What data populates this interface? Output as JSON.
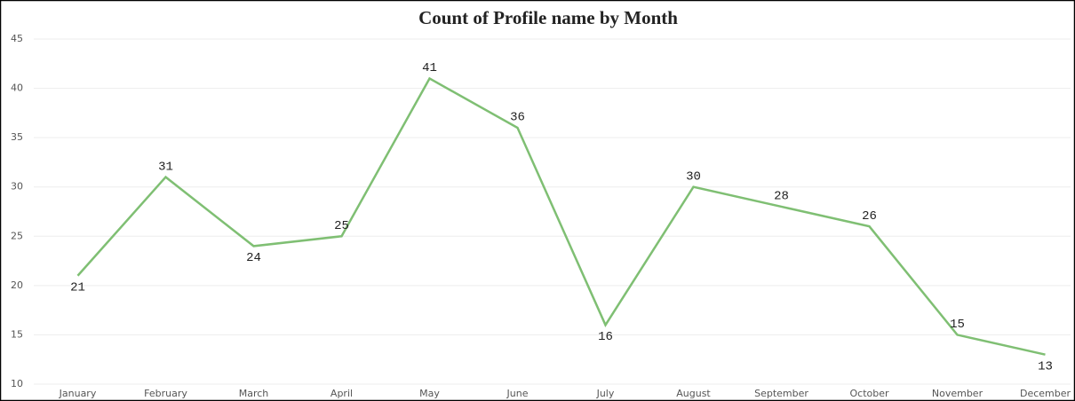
{
  "chart_data": {
    "type": "line",
    "title": "Count of Profile name by Month",
    "categories": [
      "January",
      "February",
      "March",
      "April",
      "May",
      "June",
      "July",
      "August",
      "September",
      "October",
      "November",
      "December"
    ],
    "values": [
      21,
      31,
      24,
      25,
      41,
      36,
      16,
      30,
      28,
      26,
      15,
      13
    ],
    "color": "#7fbf73",
    "ylim": [
      10,
      45
    ],
    "yticks": [
      10,
      15,
      20,
      25,
      30,
      35,
      40,
      45
    ],
    "grid": true
  }
}
